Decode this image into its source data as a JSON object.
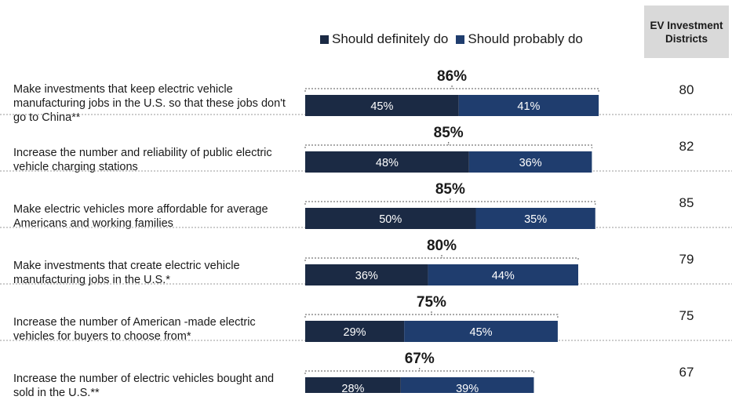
{
  "legend": {
    "definitely": {
      "label": "Should definitely do",
      "color": "#1b2a44"
    },
    "probably": {
      "label": "Should probably do",
      "color": "#1f3d6e"
    }
  },
  "ev_header": "EV Investment Districts",
  "chart_data": {
    "type": "bar",
    "orientation": "horizontal",
    "stacked": true,
    "categories": [
      "Make investments that keep electric vehicle manufacturing jobs in the U.S. so that these jobs don't go to China**",
      "Increase the number and reliability of public electric vehicle charging stations",
      "Make electric vehicles more affordable for average Americans and working families",
      "Make investments that create electric vehicle manufacturing jobs in the U.S.*",
      "Increase the number of American -made electric vehicles for buyers to choose from*",
      "Increase the number of electric vehicles bought and sold in the U.S.**"
    ],
    "series": [
      {
        "name": "Should definitely do",
        "values": [
          45,
          48,
          50,
          36,
          29,
          28
        ]
      },
      {
        "name": "Should probably do",
        "values": [
          41,
          36,
          35,
          44,
          45,
          39
        ]
      }
    ],
    "totals": [
      86,
      85,
      85,
      80,
      75,
      67
    ],
    "ev_investment_districts": [
      80,
      82,
      85,
      79,
      75,
      67
    ],
    "legend_position": "top",
    "grid": false
  }
}
